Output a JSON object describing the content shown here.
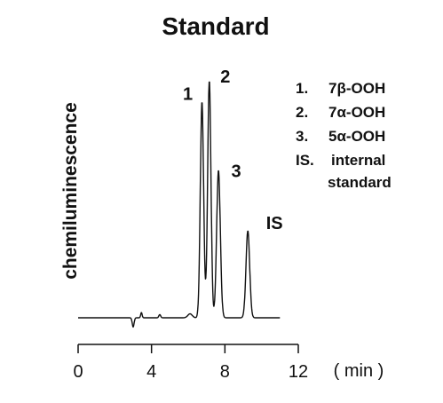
{
  "chart_data": {
    "type": "line",
    "title": "Standard",
    "ylabel": "chemiluminescence",
    "xunit": "( min )",
    "xlim": [
      0,
      12
    ],
    "xticks": [
      "0",
      "4",
      "8",
      "12"
    ],
    "grid": false,
    "baseline": 0.03,
    "peaks": [
      {
        "label": "1",
        "x": 6.75,
        "height": 0.82,
        "width": 0.09
      },
      {
        "label": "2",
        "x": 7.15,
        "height": 0.9,
        "width": 0.09
      },
      {
        "label": "3",
        "x": 7.65,
        "height": 0.56,
        "width": 0.1
      },
      {
        "label": "IS",
        "x": 9.25,
        "height": 0.33,
        "width": 0.1
      }
    ],
    "legend": [
      {
        "id": "1.",
        "text": "7β-OOH"
      },
      {
        "id": "2.",
        "text": "7α-OOH"
      },
      {
        "id": "3.",
        "text": "5α-OOH"
      },
      {
        "id": "IS.",
        "text": "internal",
        "text2": "standard"
      }
    ]
  }
}
